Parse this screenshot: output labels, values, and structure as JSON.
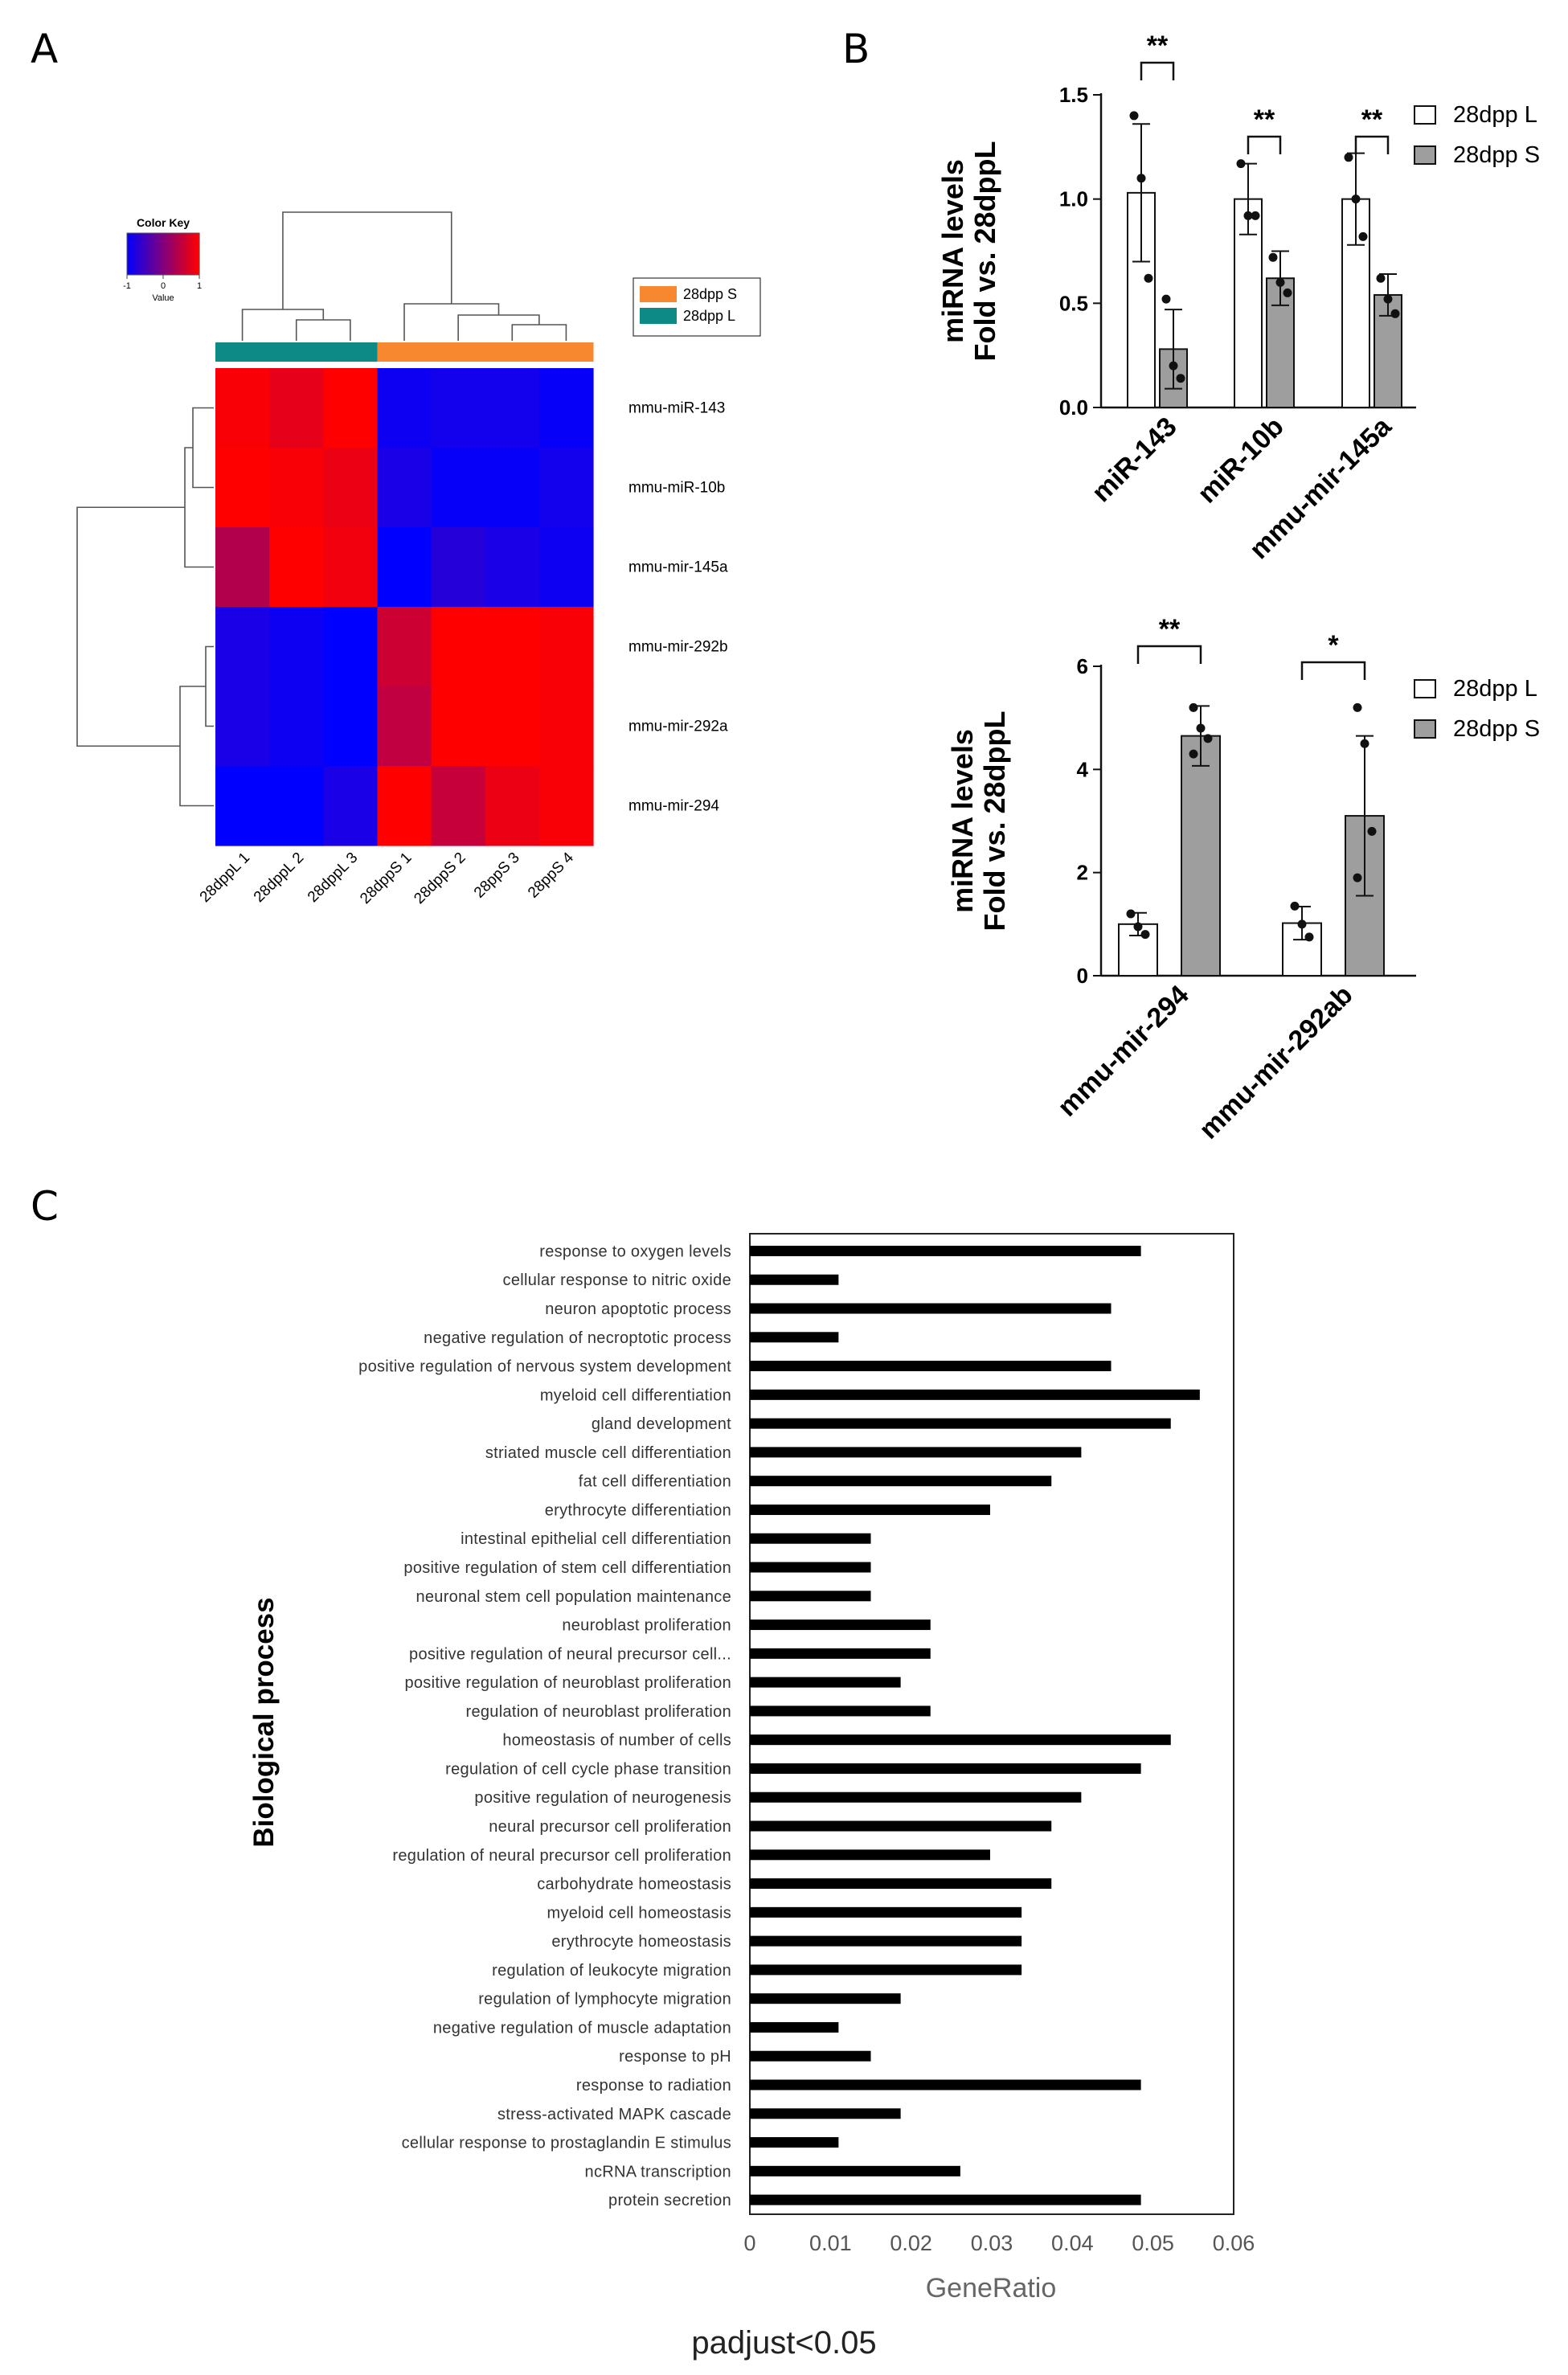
{
  "panels": {
    "a": "A",
    "b": "B",
    "c": "C"
  },
  "colors": {
    "up": "#ff0000",
    "mid": "#800080",
    "down": "#0000ff",
    "group_L": "#0e8a86",
    "group_S": "#f7882f",
    "bar_L": "#ffffff",
    "bar_S": "#9e9e9e",
    "bar_go": "#000000"
  },
  "footer": {
    "text": "padjust<0.05"
  },
  "chart_data": [
    {
      "type": "heatmap",
      "panel": "A",
      "color_key": {
        "title": "Color Key",
        "ticks": [
          "-1",
          "0",
          "1"
        ],
        "label": "Value"
      },
      "legend": [
        {
          "name": "28dpp S",
          "color": "#f7882f"
        },
        {
          "name": "28dpp L",
          "color": "#0e8a86"
        }
      ],
      "rows": [
        "mmu-miR-143",
        "mmu-miR-10b",
        "mmu-mir-145a",
        "mmu-mir-292b",
        "mmu-mir-292a",
        "mmu-mir-294"
      ],
      "columns": [
        "28dppL 1",
        "28dppL 2",
        "28dppL 3",
        "28dppS 1",
        "28dppS 2",
        "28ppS 3",
        "28ppS 4"
      ],
      "column_groups": [
        "28dpp L",
        "28dpp L",
        "28dpp L",
        "28dpp S",
        "28dpp S",
        "28dpp S",
        "28dpp S"
      ],
      "values": [
        [
          0.95,
          0.8,
          1.0,
          -0.9,
          -0.85,
          -0.85,
          -0.95
        ],
        [
          1.0,
          0.95,
          0.85,
          -0.8,
          -0.95,
          -0.95,
          -0.85
        ],
        [
          0.4,
          1.0,
          0.9,
          -1.0,
          -0.7,
          -0.8,
          -0.9
        ],
        [
          -0.8,
          -0.9,
          -1.0,
          0.6,
          1.0,
          1.0,
          0.95
        ],
        [
          -0.8,
          -0.9,
          -1.0,
          0.5,
          1.0,
          1.0,
          0.95
        ],
        [
          -1.0,
          -1.0,
          -0.8,
          1.0,
          0.55,
          0.85,
          0.95
        ]
      ]
    },
    {
      "type": "bar",
      "panel": "B",
      "ylabel": [
        "miRNA levels",
        "Fold vs. 28dppL"
      ],
      "ylim": [
        0,
        1.5
      ],
      "yticks": [
        "0.0",
        "0.5",
        "1.0",
        "1.5"
      ],
      "categories": [
        "miR-143",
        "miR-10b",
        "mmu-mir-145a"
      ],
      "series": [
        {
          "name": "28dpp L",
          "values": [
            1.03,
            1.0,
            1.0
          ],
          "errors": [
            0.33,
            0.17,
            0.22
          ],
          "points": [
            [
              1.4,
              1.1,
              0.62
            ],
            [
              1.17,
              0.92,
              0.92
            ],
            [
              1.2,
              1.0,
              0.82
            ]
          ]
        },
        {
          "name": "28dpp S",
          "values": [
            0.28,
            0.62,
            0.54
          ],
          "errors": [
            0.19,
            0.13,
            0.1
          ],
          "points": [
            [
              0.52,
              0.2,
              0.14
            ],
            [
              0.72,
              0.6,
              0.55
            ],
            [
              0.62,
              0.52,
              0.45
            ]
          ]
        }
      ],
      "significance": [
        "**",
        "**",
        "**"
      ],
      "legend_position": "top-right"
    },
    {
      "type": "bar",
      "panel": "B",
      "ylabel": [
        "miRNA levels",
        "Fold vs. 28dppL"
      ],
      "ylim": [
        0,
        6
      ],
      "yticks": [
        "0",
        "2",
        "4",
        "6"
      ],
      "categories": [
        "mmu-mir-294",
        "mmu-mir-292ab"
      ],
      "series": [
        {
          "name": "28dpp L",
          "values": [
            1.0,
            1.02
          ],
          "errors": [
            0.22,
            0.32
          ],
          "points": [
            [
              1.2,
              0.95,
              0.8
            ],
            [
              1.35,
              1.0,
              0.75
            ]
          ]
        },
        {
          "name": "28dpp S",
          "values": [
            4.65,
            3.1
          ],
          "errors": [
            0.58,
            1.55
          ],
          "points": [
            [
              5.2,
              4.8,
              4.6,
              4.3
            ],
            [
              5.2,
              4.5,
              2.8,
              1.9
            ]
          ]
        }
      ],
      "significance": [
        "**",
        "*"
      ],
      "legend_position": "top-right"
    },
    {
      "type": "bar",
      "orientation": "horizontal",
      "panel": "C",
      "xlabel": "GeneRatio",
      "ylabel": "Biological process",
      "xlim": [
        0,
        0.06
      ],
      "xticks": [
        "0",
        "0.01",
        "0.02",
        "0.03",
        "0.04",
        "0.05",
        "0.06"
      ],
      "categories": [
        "response to oxygen levels",
        "cellular response to nitric oxide",
        "neuron apoptotic process",
        "negative regulation of necroptotic process",
        "positive regulation of nervous system development",
        "myeloid cell differentiation",
        "gland development",
        "striated muscle cell differentiation",
        "fat cell differentiation",
        "erythrocyte differentiation",
        "intestinal epithelial cell differentiation",
        "positive regulation of stem cell differentiation",
        "neuronal stem cell population maintenance",
        "neuroblast proliferation",
        "positive regulation of neural precursor cell...",
        "positive regulation of neuroblast proliferation",
        "regulation of neuroblast proliferation",
        "homeostasis of number of cells",
        "regulation of cell cycle phase transition",
        "positive regulation of neurogenesis",
        "neural precursor cell proliferation",
        "regulation of neural precursor cell proliferation",
        "carbohydrate homeostasis",
        "myeloid cell homeostasis",
        "erythrocyte homeostasis",
        "regulation of leukocyte migration",
        "regulation of lymphocyte migration",
        "negative regulation of muscle adaptation",
        "response to pH",
        "response to radiation",
        "stress-activated MAPK cascade",
        "cellular response to prostaglandin E stimulus",
        "ncRNA transcription",
        "protein secretion"
      ],
      "values": [
        0.0485,
        0.011,
        0.0448,
        0.011,
        0.0448,
        0.0558,
        0.0522,
        0.0411,
        0.0374,
        0.0298,
        0.015,
        0.015,
        0.015,
        0.0224,
        0.0224,
        0.0187,
        0.0224,
        0.0522,
        0.0485,
        0.0411,
        0.0374,
        0.0298,
        0.0374,
        0.0337,
        0.0337,
        0.0337,
        0.0187,
        0.011,
        0.015,
        0.0485,
        0.0187,
        0.011,
        0.0261,
        0.0485
      ]
    }
  ]
}
